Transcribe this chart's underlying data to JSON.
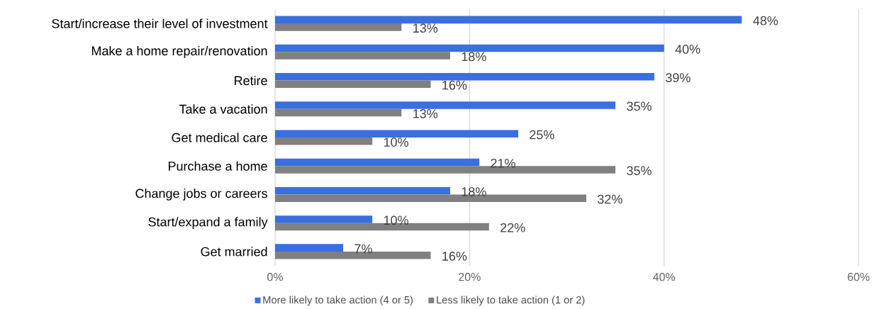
{
  "chart_data": {
    "type": "bar",
    "orientation": "horizontal",
    "categories": [
      "Start/increase their level of investment",
      "Make a home repair/renovation",
      "Retire",
      "Take a vacation",
      "Get medical care",
      "Purchase a home",
      "Change jobs or careers",
      "Start/expand a family",
      "Get married"
    ],
    "series": [
      {
        "name": "More likely to take action (4 or 5)",
        "color": "#3a6fe0",
        "values": [
          48,
          40,
          39,
          35,
          25,
          21,
          18,
          10,
          7
        ],
        "value_labels": [
          "48%",
          "40%",
          "39%",
          "35%",
          "25%",
          "21%",
          "18%",
          "10%",
          "7%"
        ]
      },
      {
        "name": "Less likely to take action (1 or 2)",
        "color": "#808080",
        "values": [
          13,
          18,
          16,
          13,
          10,
          35,
          32,
          22,
          16
        ],
        "value_labels": [
          "13%",
          "18%",
          "16%",
          "13%",
          "10%",
          "35%",
          "32%",
          "22%",
          "16%"
        ]
      }
    ],
    "xlim": [
      0,
      60
    ],
    "xticks": [
      {
        "value": 0,
        "label": "0%"
      },
      {
        "value": 20,
        "label": "20%"
      },
      {
        "value": 40,
        "label": "40%"
      },
      {
        "value": 60,
        "label": "60%"
      }
    ],
    "grid": "x",
    "legend": "bottom"
  }
}
